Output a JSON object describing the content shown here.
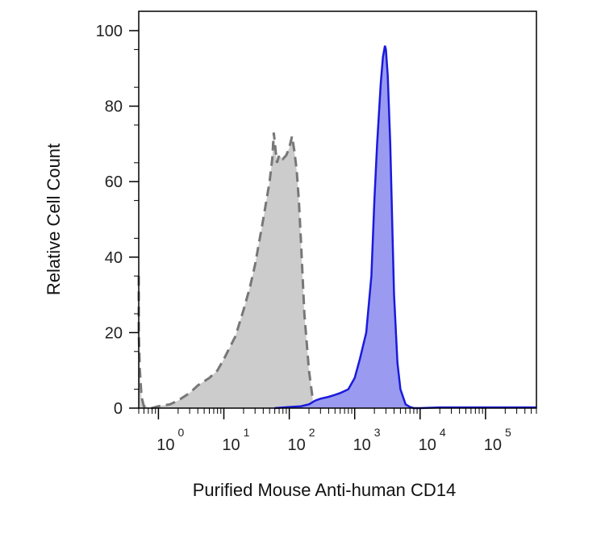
{
  "chart_data": {
    "type": "area",
    "xlabel": "Purified Mouse Anti-human CD14",
    "ylabel": "Relative Cell Count",
    "x_scale": "log",
    "xlim": [
      0.5,
      600000
    ],
    "ylim": [
      0,
      100
    ],
    "grid": false,
    "x_ticks": [
      {
        "value": 1,
        "base": "10",
        "exp": "0"
      },
      {
        "value": 10,
        "base": "10",
        "exp": "1"
      },
      {
        "value": 100,
        "base": "10",
        "exp": "2"
      },
      {
        "value": 1000,
        "base": "10",
        "exp": "3"
      },
      {
        "value": 10000,
        "base": "10",
        "exp": "4"
      },
      {
        "value": 100000,
        "base": "10",
        "exp": "5"
      }
    ],
    "y_ticks": [
      0,
      20,
      40,
      60,
      80,
      100
    ],
    "colors": {
      "isotype_fill": "#cccccc",
      "isotype_line": "#777777",
      "stained_fill": "#9a9af0",
      "stained_line": "#1a1adc",
      "axis": "#000000"
    },
    "series": [
      {
        "style": "dashed-gray",
        "x": [
          0.5,
          0.5,
          0.52,
          0.55,
          0.6,
          0.8,
          1,
          1.5,
          2,
          3,
          4,
          6,
          8,
          10,
          15,
          20,
          25,
          30,
          40,
          50,
          55,
          58,
          62,
          65,
          70,
          80,
          90,
          100,
          110,
          120,
          130,
          140,
          150,
          170,
          200,
          230,
          260
        ],
        "y": [
          35,
          20,
          10,
          3,
          0.5,
          0,
          0.5,
          1,
          2,
          4,
          6,
          8,
          10,
          13,
          19,
          26,
          32,
          38,
          50,
          60,
          66,
          73,
          68,
          65,
          67,
          66,
          67,
          69,
          72,
          68,
          63,
          55,
          45,
          25,
          10,
          2,
          0
        ]
      },
      {
        "style": "solid-blue",
        "x": [
          60,
          100,
          150,
          200,
          250,
          300,
          400,
          500,
          600,
          700,
          800,
          1000,
          1200,
          1500,
          1800,
          2000,
          2200,
          2500,
          2700,
          2900,
          3000,
          3200,
          3500,
          3800,
          4000,
          4500,
          5000,
          6000,
          7000,
          8000,
          10000,
          20000,
          100000,
          600000
        ],
        "y": [
          0,
          0.3,
          0.5,
          1,
          2,
          2.5,
          3,
          3.5,
          4,
          4.5,
          5,
          8,
          13,
          20,
          35,
          55,
          70,
          86,
          93,
          96,
          95,
          88,
          70,
          45,
          30,
          12,
          5,
          1,
          0.3,
          0,
          0,
          0.2,
          0.2,
          0.2
        ]
      }
    ]
  }
}
